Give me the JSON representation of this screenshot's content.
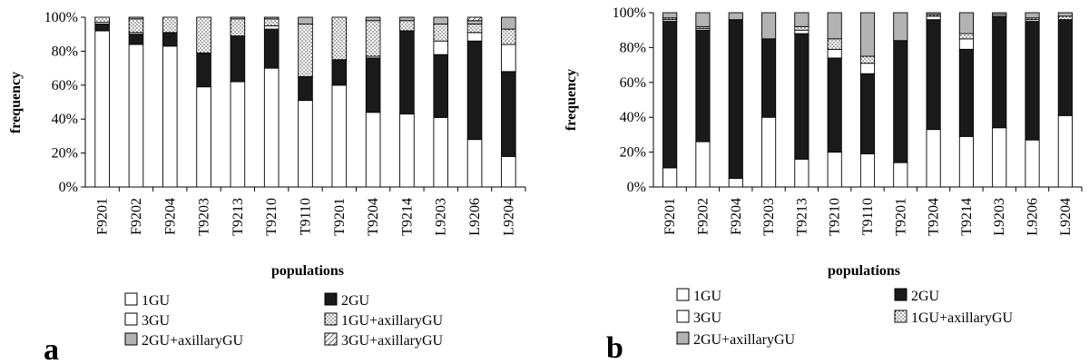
{
  "colors": {
    "1GU": "#ffffff",
    "2GU": "#1a1a1a",
    "3GU": "#ffffff",
    "1GU+axillaryGU": "dots",
    "2GU+axillaryGU": "#b3b3b3",
    "3GU+axillaryGU": "hatch"
  },
  "chart_data": [
    {
      "type": "bar",
      "stacked": true,
      "panel_label": "a",
      "xlabel": "populations",
      "ylabel": "frequency",
      "ylim": [
        0,
        100
      ],
      "y_ticks": [
        "0%",
        "20%",
        "40%",
        "60%",
        "80%",
        "100%"
      ],
      "categories": [
        "F9201",
        "F9202",
        "F9204",
        "T9203",
        "T9213",
        "T9210",
        "T9110",
        "T9201",
        "T9204",
        "T9214",
        "L9203",
        "L9206",
        "L9204"
      ],
      "series": [
        {
          "name": "1GU",
          "values": [
            92,
            84,
            83,
            59,
            62,
            70,
            51,
            60,
            44,
            43,
            41,
            28,
            18
          ]
        },
        {
          "name": "2GU",
          "values": [
            4,
            6,
            8,
            20,
            27,
            23,
            14,
            15,
            32,
            49,
            37,
            58,
            50
          ]
        },
        {
          "name": "3GU",
          "values": [
            1,
            1,
            0,
            0,
            0,
            2,
            0,
            0,
            1,
            0,
            8,
            5,
            16
          ]
        },
        {
          "name": "1GU+axillaryGU",
          "values": [
            3,
            8,
            9,
            21,
            10,
            4,
            31,
            25,
            21,
            6,
            10,
            5,
            9
          ]
        },
        {
          "name": "2GU+axillaryGU",
          "values": [
            0,
            1,
            0,
            0,
            1,
            1,
            4,
            0,
            2,
            2,
            4,
            2,
            7
          ]
        },
        {
          "name": "3GU+axillaryGU",
          "values": [
            0,
            0,
            0,
            0,
            0,
            0,
            0,
            0,
            0,
            0,
            0,
            2,
            0
          ]
        }
      ],
      "legend": [
        "1GU",
        "2GU",
        "3GU",
        "1GU+axillaryGU",
        "2GU+axillaryGU",
        "3GU+axillaryGU"
      ]
    },
    {
      "type": "bar",
      "stacked": true,
      "panel_label": "b",
      "xlabel": "populations",
      "ylabel": "frequency",
      "ylim": [
        0,
        100
      ],
      "y_ticks": [
        "0%",
        "20%",
        "40%",
        "60%",
        "80%",
        "100%"
      ],
      "categories": [
        "F9201",
        "F9202",
        "F9204",
        "T9203",
        "T9213",
        "T9210",
        "T9110",
        "T9201",
        "T9204",
        "T9214",
        "L9203",
        "L9206",
        "L9204"
      ],
      "series": [
        {
          "name": "1GU",
          "values": [
            11,
            26,
            5,
            40,
            16,
            20,
            19,
            14,
            33,
            29,
            34,
            27,
            41
          ]
        },
        {
          "name": "2GU",
          "values": [
            84,
            64,
            91,
            45,
            72,
            54,
            46,
            70,
            63,
            50,
            64,
            68,
            55
          ]
        },
        {
          "name": "3GU",
          "values": [
            1,
            1,
            0,
            0,
            2,
            5,
            6,
            0,
            2,
            6,
            1,
            1,
            0
          ]
        },
        {
          "name": "1GU+axillaryGU",
          "values": [
            1,
            1,
            0,
            0,
            2,
            6,
            4,
            0,
            1,
            3,
            0,
            1,
            2
          ]
        },
        {
          "name": "2GU+axillaryGU",
          "values": [
            3,
            8,
            4,
            15,
            8,
            15,
            25,
            16,
            1,
            12,
            1,
            3,
            2
          ]
        }
      ],
      "legend": [
        "1GU",
        "2GU",
        "3GU",
        "1GU+axillaryGU",
        "2GU+axillaryGU"
      ]
    }
  ]
}
